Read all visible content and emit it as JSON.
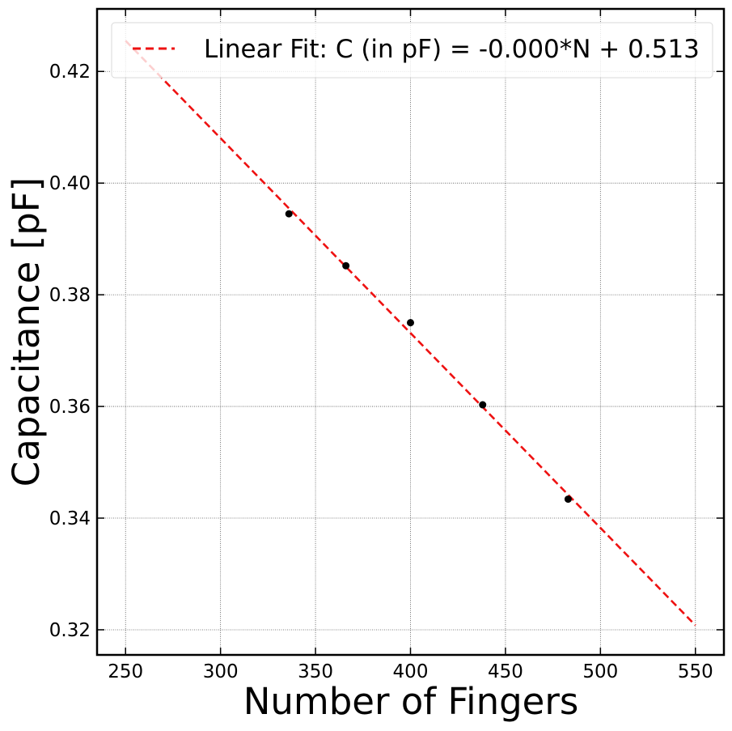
{
  "chart_data": {
    "type": "scatter",
    "xlabel": "Number of Fingers",
    "ylabel": "Capacitance [pF]",
    "xlim": [
      235,
      565
    ],
    "ylim": [
      0.3155,
      0.4312
    ],
    "xticks": [
      250,
      300,
      350,
      400,
      450,
      500,
      550
    ],
    "xtick_labels": [
      "250",
      "300",
      "350",
      "400",
      "450",
      "500",
      "550"
    ],
    "yticks": [
      0.32,
      0.34,
      0.36,
      0.38,
      0.4,
      0.42
    ],
    "ytick_labels": [
      "0.32",
      "0.34",
      "0.36",
      "0.38",
      "0.40",
      "0.42"
    ],
    "grid": true,
    "legend_position": "top",
    "series": [
      {
        "kind": "points",
        "color": "#000000",
        "x": [
          336,
          366,
          400,
          438,
          483
        ],
        "y": [
          0.3945,
          0.3852,
          0.375,
          0.3603,
          0.3434
        ]
      },
      {
        "kind": "line",
        "name": "Linear Fit: C (in pF) = -0.000*N + 0.513",
        "style": "dashed",
        "color": "#ee1111",
        "x": [
          250,
          550
        ],
        "y": [
          0.4255,
          0.3208
        ]
      }
    ]
  }
}
